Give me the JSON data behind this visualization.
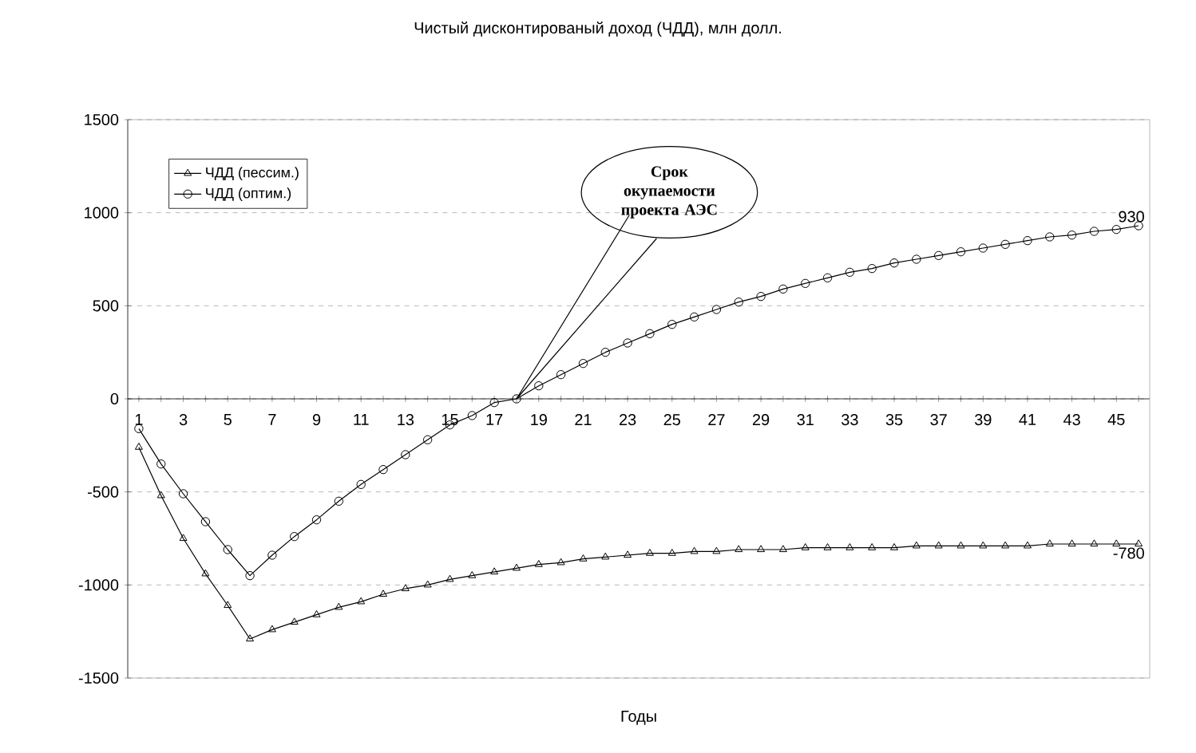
{
  "chart_data": {
    "type": "line",
    "title": "Чистый дисконтированый доход (ЧДД), млн долл.",
    "xlabel": "Годы",
    "categories": [
      "1",
      null,
      "3",
      null,
      "5",
      null,
      "7",
      null,
      "9",
      null,
      "11",
      null,
      "13",
      null,
      "15",
      null,
      "17",
      null,
      "19",
      null,
      "21",
      null,
      "23",
      null,
      "25",
      null,
      "27",
      null,
      "29",
      null,
      "31",
      null,
      "33",
      null,
      "35",
      null,
      "37",
      null,
      "39",
      null,
      "41",
      null,
      "43",
      null,
      "45",
      null
    ],
    "series": [
      {
        "name": "ЧДД (пессим.)",
        "color": "#000000",
        "marker": "triangle",
        "values": [
          -260,
          -520,
          -750,
          -940,
          -1110,
          -1290,
          -1240,
          -1200,
          -1160,
          -1120,
          -1090,
          -1050,
          -1020,
          -1000,
          -970,
          -950,
          -930,
          -910,
          -890,
          -880,
          -860,
          -850,
          -840,
          -830,
          -830,
          -820,
          -820,
          -810,
          -810,
          -810,
          -800,
          -800,
          -800,
          -800,
          -800,
          -790,
          -790,
          -790,
          -790,
          -790,
          -790,
          -780,
          -780,
          -780,
          -780,
          -780
        ],
        "value_labels": [
          null,
          null,
          null,
          null,
          null,
          null,
          null,
          null,
          null,
          null,
          null,
          null,
          null,
          null,
          null,
          null,
          null,
          null,
          null,
          null,
          null,
          null,
          null,
          null,
          null,
          null,
          null,
          null,
          null,
          null,
          null,
          null,
          null,
          null,
          null,
          null,
          null,
          null,
          null,
          null,
          null,
          null,
          null,
          null,
          null,
          "-780"
        ]
      },
      {
        "name": "ЧДД (оптим.)",
        "color": "#000000",
        "marker": "circle",
        "values": [
          -160,
          -350,
          -510,
          -660,
          -810,
          -950,
          -840,
          -740,
          -650,
          -550,
          -460,
          -380,
          -300,
          -220,
          -140,
          -90,
          -20,
          0,
          70,
          130,
          190,
          250,
          300,
          350,
          400,
          440,
          480,
          520,
          550,
          590,
          620,
          650,
          680,
          700,
          730,
          750,
          770,
          790,
          810,
          830,
          850,
          870,
          880,
          900,
          910,
          930
        ],
        "value_labels": [
          null,
          null,
          null,
          null,
          null,
          null,
          null,
          null,
          null,
          null,
          null,
          null,
          null,
          null,
          null,
          null,
          null,
          null,
          null,
          null,
          null,
          null,
          null,
          null,
          null,
          null,
          null,
          null,
          null,
          null,
          null,
          null,
          null,
          null,
          null,
          null,
          null,
          null,
          null,
          null,
          null,
          null,
          null,
          null,
          null,
          "930"
        ]
      }
    ],
    "ylim": [
      -1500,
      1500
    ],
    "yticks": [
      -1500,
      -1000,
      -500,
      0,
      500,
      1000,
      1500
    ],
    "grid": "y",
    "legend": "top left",
    "line_style": "solid",
    "annotations": [
      "Срок окупаемости проекта АЭС"
    ]
  }
}
